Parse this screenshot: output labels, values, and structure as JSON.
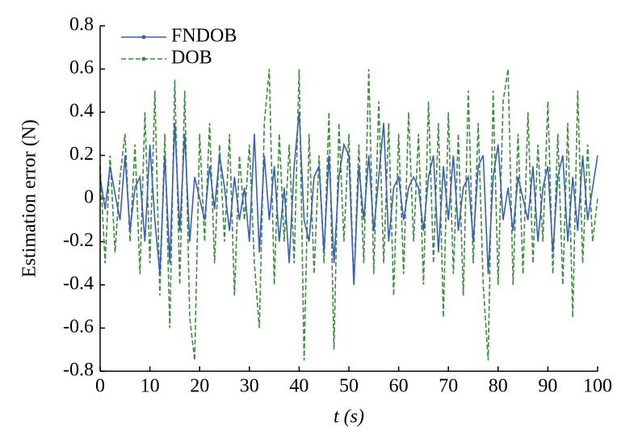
{
  "chart_data": {
    "type": "line",
    "x_label": "t (s)",
    "y_label": "Estimation error (N)",
    "x": [
      0,
      1,
      2,
      3,
      4,
      5,
      6,
      7,
      8,
      9,
      10,
      11,
      12,
      13,
      14,
      15,
      16,
      17,
      18,
      19,
      20,
      21,
      22,
      23,
      24,
      25,
      26,
      27,
      28,
      29,
      30,
      31,
      32,
      33,
      34,
      35,
      36,
      37,
      38,
      39,
      40,
      41,
      42,
      43,
      44,
      45,
      46,
      47,
      48,
      49,
      50,
      51,
      52,
      53,
      54,
      55,
      56,
      57,
      58,
      59,
      60,
      61,
      62,
      63,
      64,
      65,
      66,
      67,
      68,
      69,
      70,
      71,
      72,
      73,
      74,
      75,
      76,
      77,
      78,
      79,
      80,
      81,
      82,
      83,
      84,
      85,
      86,
      87,
      88,
      89,
      90,
      91,
      92,
      93,
      94,
      95,
      96,
      97,
      98,
      99,
      100
    ],
    "series": [
      {
        "name": "FNDOB",
        "color": "#3a5fb8",
        "dash": false,
        "values": [
          0.1,
          -0.05,
          0.15,
          0.02,
          -0.1,
          0.2,
          -0.15,
          0.05,
          0.1,
          -0.2,
          0.25,
          -0.1,
          -0.35,
          0.2,
          -0.3,
          0.35,
          -0.15,
          0.3,
          -0.2,
          0.1,
          0.0,
          -0.1,
          0.15,
          -0.05,
          0.2,
          0.05,
          -0.15,
          0.1,
          -0.1,
          0.05,
          -0.2,
          0.3,
          -0.25,
          0.2,
          -0.1,
          0.15,
          -0.2,
          0.05,
          -0.3,
          0.15,
          0.4,
          -0.1,
          -0.2,
          0.1,
          0.15,
          -0.25,
          0.2,
          -0.3,
          0.1,
          0.25,
          0.2,
          -0.4,
          0.15,
          -0.1,
          0.2,
          -0.15,
          0.1,
          0.35,
          -0.2,
          0.05,
          0.1,
          -0.1,
          0.05,
          0.1,
          0.05,
          -0.15,
          0.1,
          0.2,
          -0.25,
          0.15,
          -0.1,
          0.2,
          -0.15,
          0.05,
          0.1,
          -0.2,
          0.15,
          0.2,
          -0.35,
          0.1,
          0.25,
          -0.1,
          0.05,
          -0.15,
          0.1,
          0.0,
          -0.1,
          0.15,
          -0.2,
          0.05,
          0.15,
          -0.25,
          0.1,
          0.2,
          -0.2,
          0.1,
          -0.15,
          0.2,
          -0.1,
          0.05,
          0.2
        ]
      },
      {
        "name": "DOB",
        "color": "#3c8c3c",
        "dash": true,
        "values": [
          0.15,
          -0.3,
          0.2,
          -0.25,
          0.1,
          0.3,
          -0.2,
          0.25,
          -0.35,
          0.4,
          -0.3,
          0.5,
          -0.45,
          0.3,
          -0.6,
          0.55,
          -0.4,
          0.5,
          -0.55,
          -0.75,
          0.3,
          -0.2,
          0.35,
          -0.3,
          0.25,
          -0.2,
          0.3,
          -0.45,
          0.2,
          -0.1,
          0.25,
          -0.3,
          -0.6,
          0.35,
          0.6,
          -0.4,
          0.3,
          -0.2,
          0.25,
          -0.3,
          0.6,
          -0.75,
          0.3,
          -0.35,
          0.2,
          -0.3,
          0.4,
          -0.7,
          0.35,
          -0.2,
          0.3,
          -0.4,
          0.25,
          -0.3,
          0.6,
          -0.35,
          0.45,
          -0.3,
          0.35,
          -0.45,
          0.3,
          -0.35,
          0.4,
          -0.2,
          0.3,
          -0.4,
          0.45,
          -0.3,
          0.35,
          -0.55,
          0.4,
          -0.35,
          0.3,
          -0.45,
          0.5,
          -0.3,
          0.35,
          -0.4,
          -0.75,
          0.5,
          -0.4,
          0.45,
          0.6,
          -0.4,
          0.3,
          -0.35,
          0.4,
          -0.3,
          0.25,
          -0.2,
          0.45,
          -0.35,
          0.3,
          -0.4,
          0.35,
          -0.55,
          0.5,
          -0.3,
          0.25,
          -0.2,
          0.0
        ]
      }
    ],
    "xlim": [
      0,
      100
    ],
    "xticks": [
      0,
      10,
      20,
      30,
      40,
      50,
      60,
      70,
      80,
      90,
      100
    ],
    "ylim": [
      -0.8,
      0.8
    ],
    "yticks": [
      -0.8,
      -0.6,
      -0.4,
      -0.2,
      0,
      0.2,
      0.4,
      0.6,
      0.8
    ],
    "legend": "upper left",
    "grid": false
  }
}
